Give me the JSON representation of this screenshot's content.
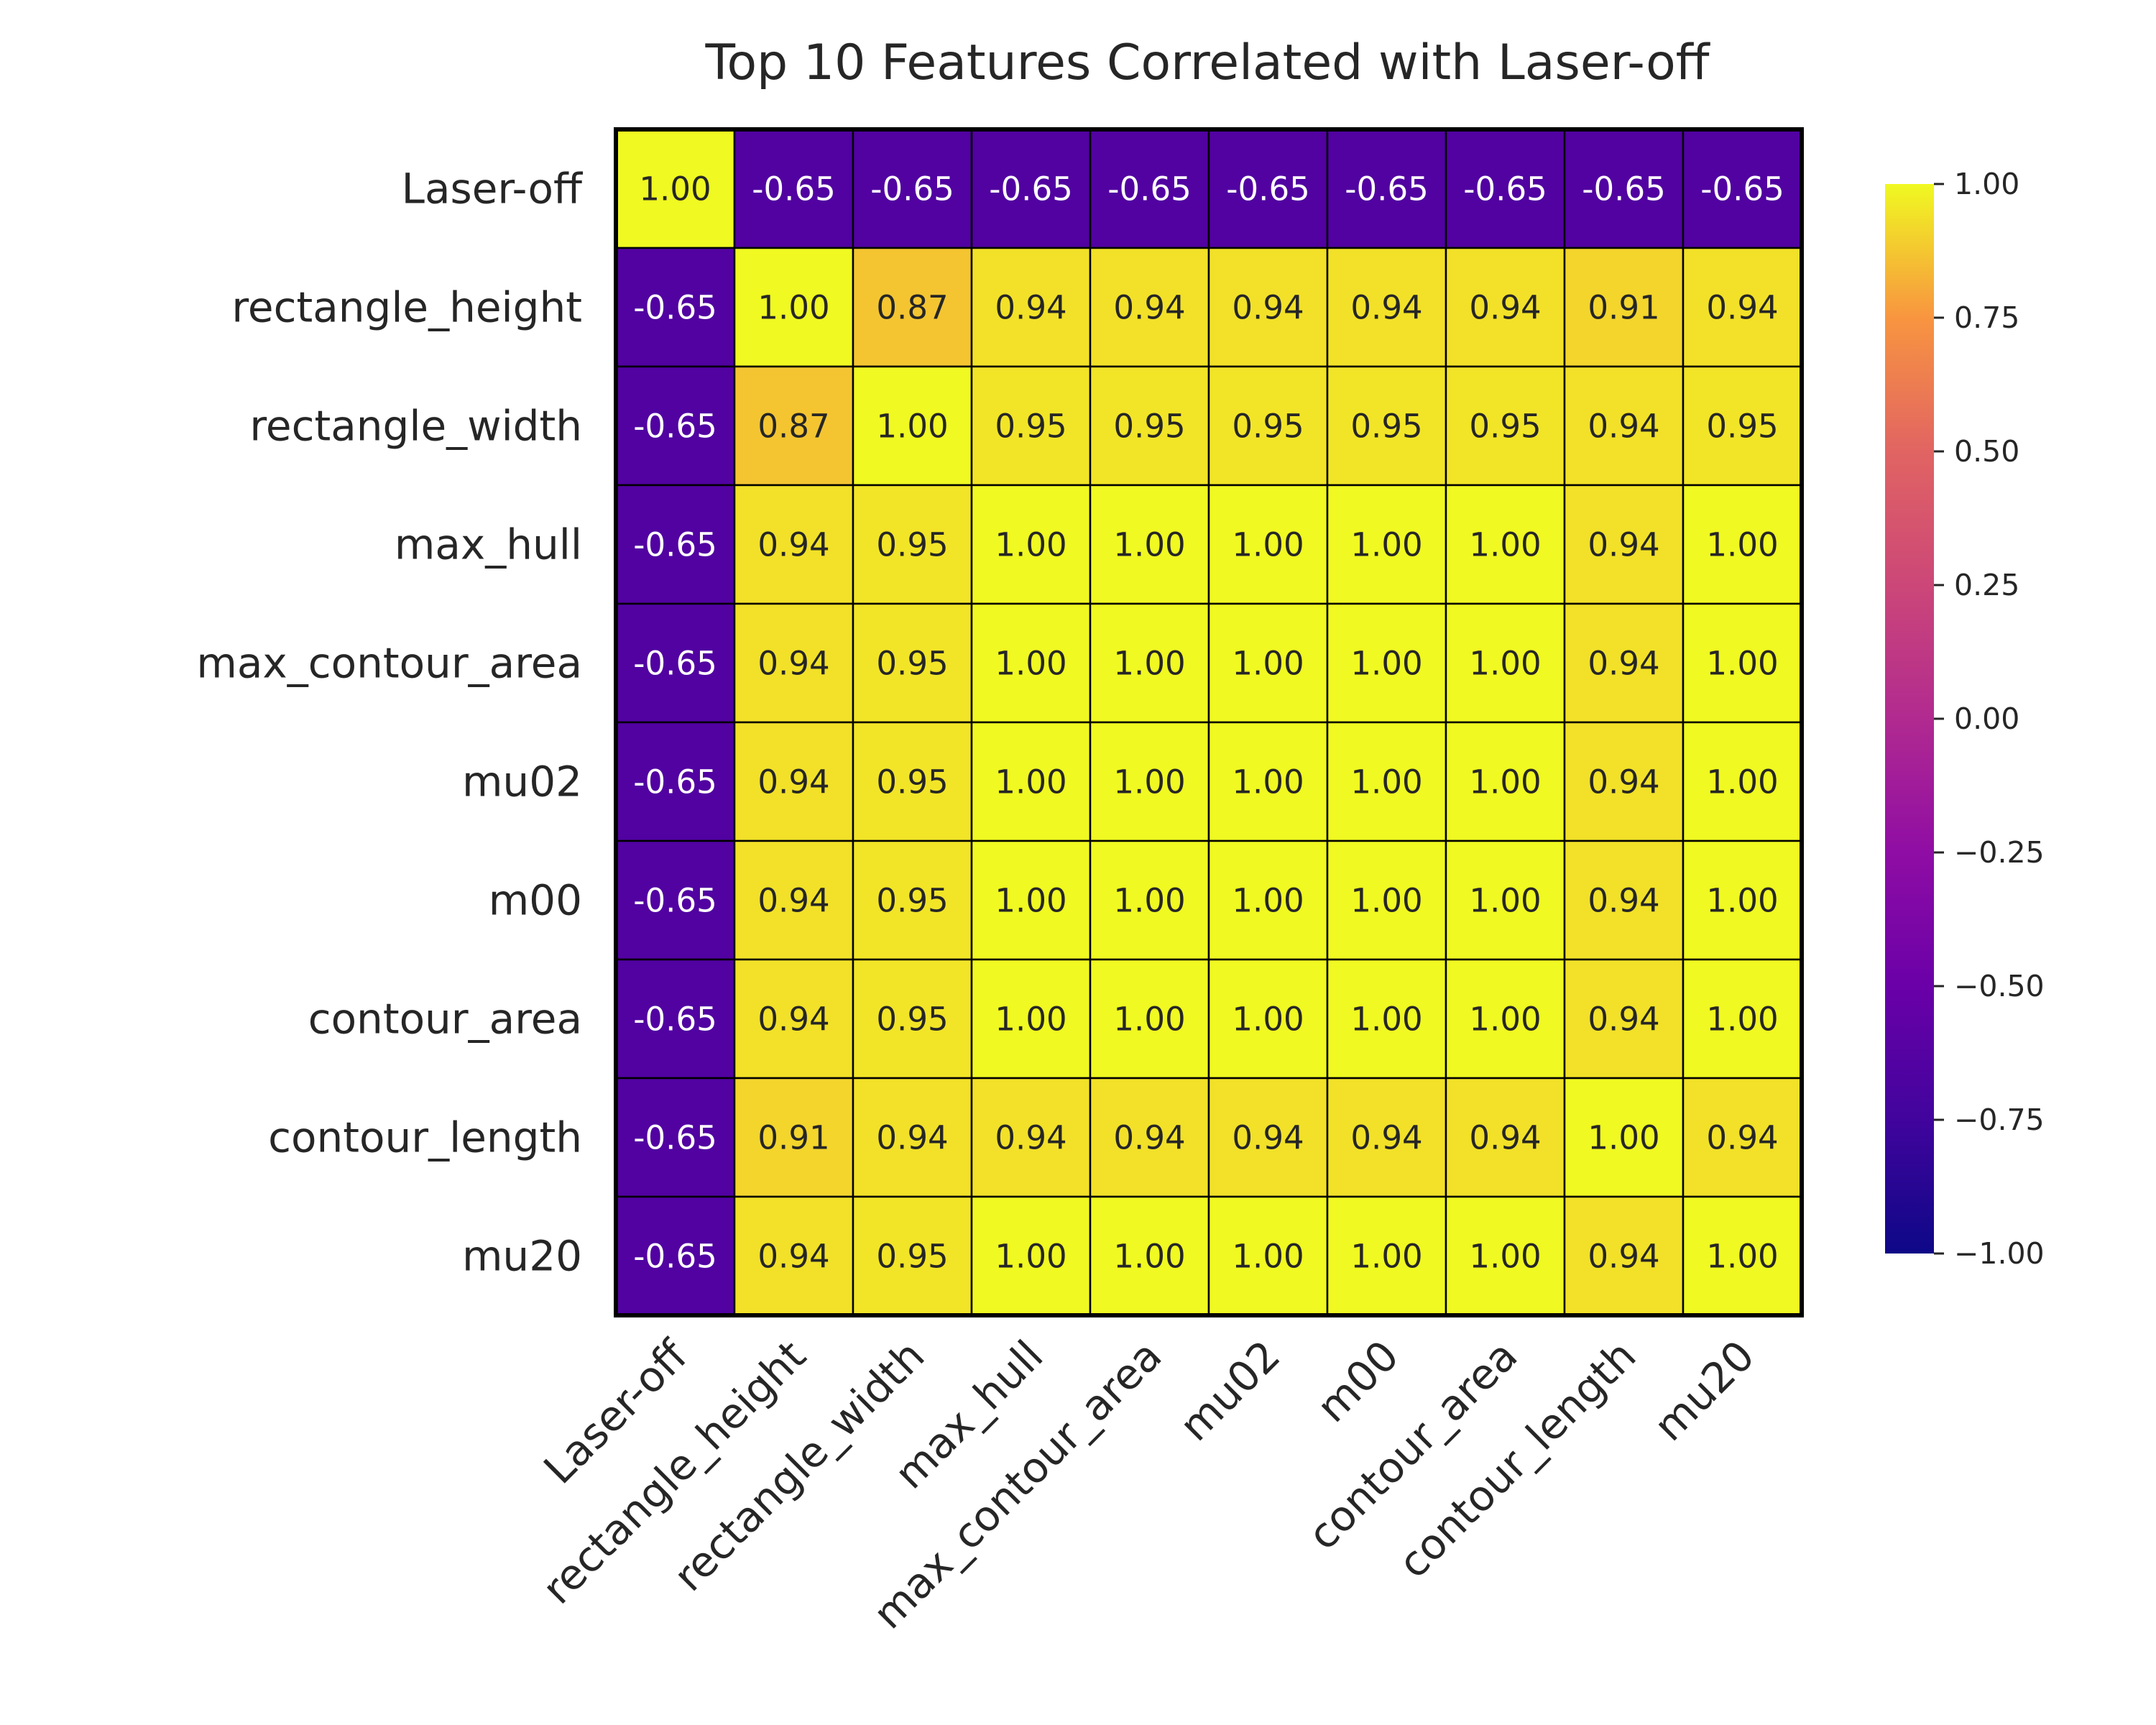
{
  "chart_data": {
    "type": "heatmap",
    "title": "Top 10 Features Correlated with Laser-off",
    "rows": [
      "Laser-off",
      "rectangle_height",
      "rectangle_width",
      "max_hull",
      "max_contour_area",
      "mu02",
      "m00",
      "contour_area",
      "contour_length",
      "mu20"
    ],
    "columns": [
      "Laser-off",
      "rectangle_height",
      "rectangle_width",
      "max_hull",
      "max_contour_area",
      "mu02",
      "m00",
      "contour_area",
      "contour_length",
      "mu20"
    ],
    "values": [
      [
        1.0,
        -0.65,
        -0.65,
        -0.65,
        -0.65,
        -0.65,
        -0.65,
        -0.65,
        -0.65,
        -0.65
      ],
      [
        -0.65,
        1.0,
        0.87,
        0.94,
        0.94,
        0.94,
        0.94,
        0.94,
        0.91,
        0.94
      ],
      [
        -0.65,
        0.87,
        1.0,
        0.95,
        0.95,
        0.95,
        0.95,
        0.95,
        0.94,
        0.95
      ],
      [
        -0.65,
        0.94,
        0.95,
        1.0,
        1.0,
        1.0,
        1.0,
        1.0,
        0.94,
        1.0
      ],
      [
        -0.65,
        0.94,
        0.95,
        1.0,
        1.0,
        1.0,
        1.0,
        1.0,
        0.94,
        1.0
      ],
      [
        -0.65,
        0.94,
        0.95,
        1.0,
        1.0,
        1.0,
        1.0,
        1.0,
        0.94,
        1.0
      ],
      [
        -0.65,
        0.94,
        0.95,
        1.0,
        1.0,
        1.0,
        1.0,
        1.0,
        0.94,
        1.0
      ],
      [
        -0.65,
        0.94,
        0.95,
        1.0,
        1.0,
        1.0,
        1.0,
        1.0,
        0.94,
        1.0
      ],
      [
        -0.65,
        0.91,
        0.94,
        0.94,
        0.94,
        0.94,
        0.94,
        0.94,
        1.0,
        0.94
      ],
      [
        -0.65,
        0.94,
        0.95,
        1.0,
        1.0,
        1.0,
        1.0,
        1.0,
        0.94,
        1.0
      ]
    ],
    "colormap": "plasma",
    "vmin": -1.0,
    "vmax": 1.0,
    "colorbar_ticks": [
      "1.00",
      "0.75",
      "0.50",
      "0.25",
      "0.00",
      "−0.25",
      "−0.50",
      "−0.75",
      "−1.00"
    ],
    "colorbar_tick_values": [
      1.0,
      0.75,
      0.5,
      0.25,
      0.0,
      -0.25,
      -0.5,
      -0.75,
      -1.0
    ],
    "legend_position": "right",
    "grid": false
  }
}
